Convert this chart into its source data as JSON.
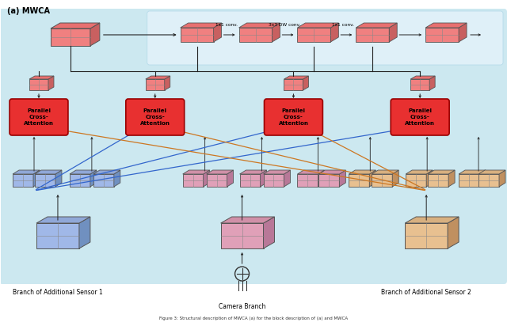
{
  "title": "(a) MWCA",
  "bg_color": "#cce8f0",
  "top_bg_color": "#dff0f8",
  "red_face": "#f08080",
  "red_side": "#c86060",
  "red_top": "#e87070",
  "blue_face": "#a0b8e8",
  "blue_side": "#7090c0",
  "blue_top": "#90a8d8",
  "pink_face": "#e0a0b8",
  "pink_side": "#b87898",
  "pink_top": "#d090a8",
  "orange_face": "#e8c090",
  "orange_side": "#c09060",
  "orange_top": "#d8b080",
  "pca_fill": "#e83030",
  "pca_edge": "#990000",
  "arrow_black": "#222222",
  "arrow_blue": "#3366cc",
  "arrow_orange": "#cc7722",
  "label_sensor1": "Branch of Additional Sensor 1",
  "label_sensor2": "Branch of Additional Sensor 2",
  "label_camera": "Camera Branch",
  "conv_labels": [
    "1x1 conv.",
    "3x3 DW conv.",
    "1x1 conv."
  ],
  "caption": "Figure 3: Structural description of MWCA (a) for the block description of (a) and MWCA"
}
